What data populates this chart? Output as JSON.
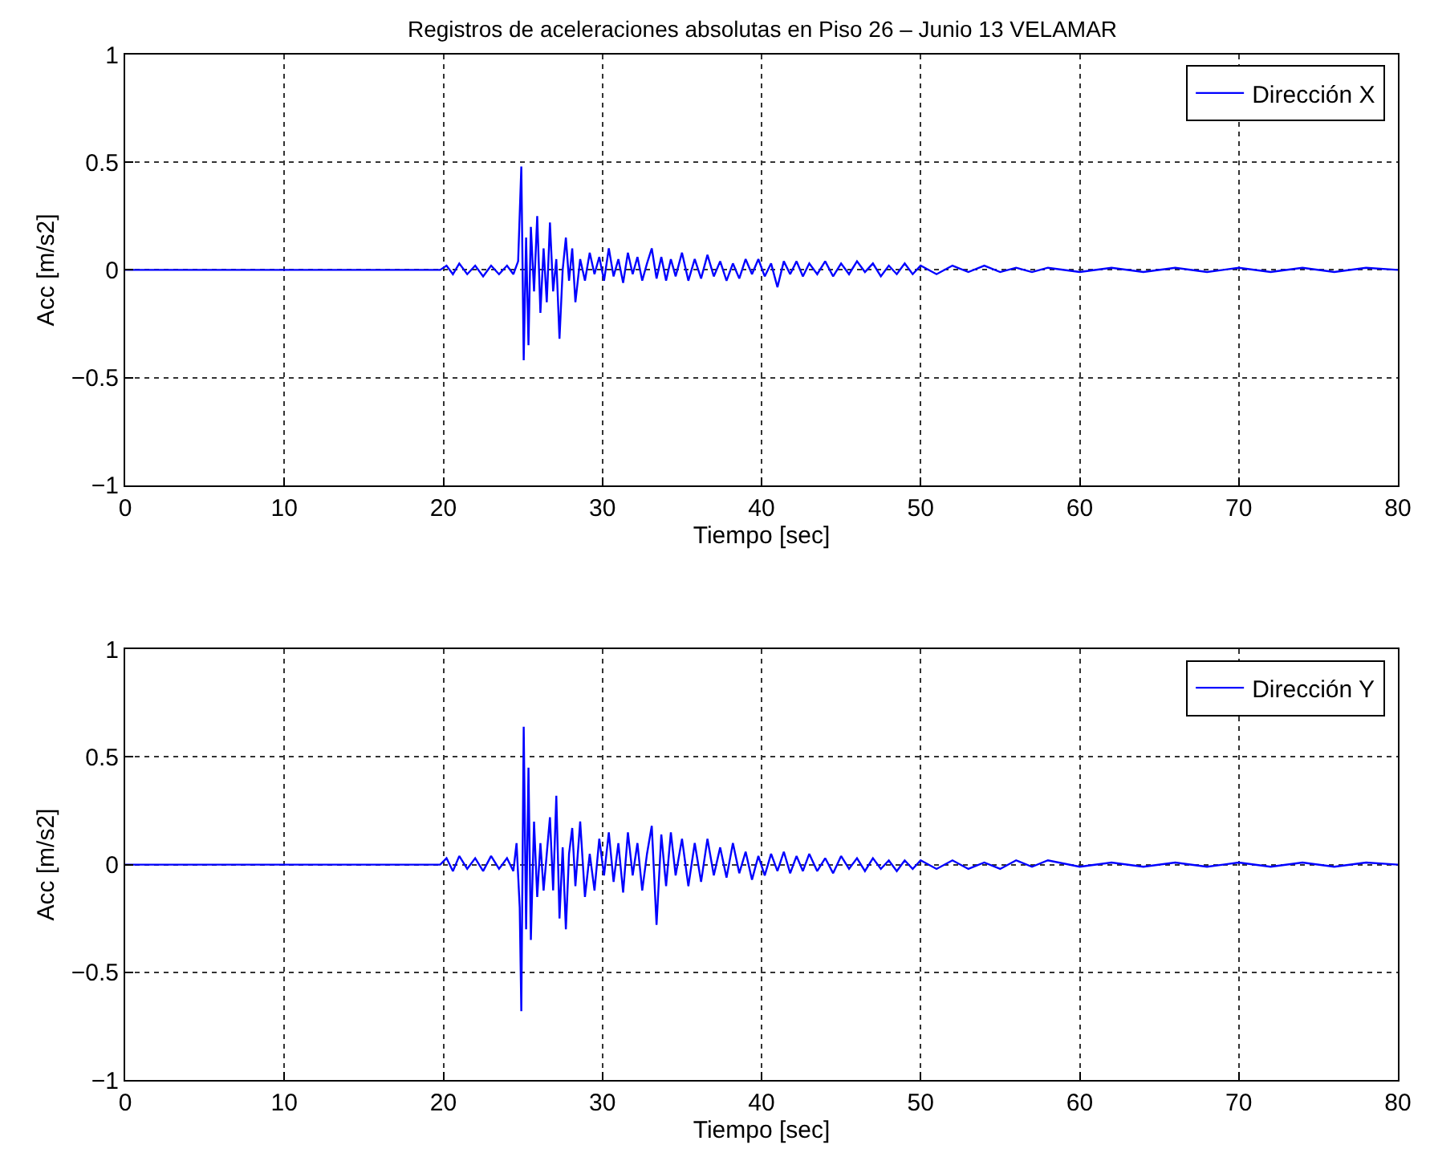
{
  "chart_data": [
    {
      "type": "line",
      "title": "Registros de aceleraciones absolutas en Piso 26 – Junio 13 VELAMAR",
      "xlabel": "Tiempo [sec]",
      "ylabel": "Acc [m/s2]",
      "x": [
        0,
        5,
        10,
        15,
        19.8,
        20.2,
        20.6,
        21,
        21.5,
        22,
        22.5,
        23,
        23.5,
        24,
        24.4,
        24.7,
        24.9,
        25.05,
        25.2,
        25.35,
        25.5,
        25.7,
        25.9,
        26.1,
        26.3,
        26.5,
        26.7,
        26.9,
        27.1,
        27.3,
        27.5,
        27.7,
        27.9,
        28.1,
        28.3,
        28.6,
        28.9,
        29.2,
        29.5,
        29.8,
        30.1,
        30.4,
        30.7,
        31,
        31.3,
        31.6,
        31.9,
        32.2,
        32.5,
        32.8,
        33.1,
        33.4,
        33.7,
        34,
        34.3,
        34.6,
        35,
        35.4,
        35.8,
        36.2,
        36.6,
        37,
        37.4,
        37.8,
        38.2,
        38.6,
        39,
        39.4,
        39.8,
        40.2,
        40.6,
        41,
        41.4,
        41.8,
        42.2,
        42.6,
        43,
        43.5,
        44,
        44.5,
        45,
        45.5,
        46,
        46.5,
        47,
        47.5,
        48,
        48.5,
        49,
        49.5,
        50,
        51,
        52,
        53,
        54,
        55,
        56,
        57,
        58,
        60,
        62,
        64,
        66,
        68,
        70,
        72,
        74,
        76,
        78,
        80
      ],
      "series": [
        {
          "name": "Dirección X",
          "color": "#0000ff",
          "values": [
            0,
            0,
            0,
            0,
            0,
            0.02,
            -0.02,
            0.03,
            -0.02,
            0.02,
            -0.03,
            0.02,
            -0.02,
            0.02,
            -0.02,
            0.04,
            0.48,
            -0.42,
            0.15,
            -0.35,
            0.2,
            -0.1,
            0.25,
            -0.2,
            0.1,
            -0.15,
            0.22,
            -0.1,
            0.05,
            -0.32,
            0,
            0.15,
            -0.05,
            0.1,
            -0.15,
            0.05,
            -0.05,
            0.08,
            -0.02,
            0.06,
            -0.05,
            0.1,
            -0.03,
            0.05,
            -0.06,
            0.08,
            -0.02,
            0.06,
            -0.05,
            0.03,
            0.1,
            -0.04,
            0.06,
            -0.05,
            0.05,
            -0.03,
            0.08,
            -0.05,
            0.05,
            -0.04,
            0.07,
            -0.03,
            0.04,
            -0.05,
            0.03,
            -0.04,
            0.05,
            -0.02,
            0.05,
            -0.03,
            0.03,
            -0.08,
            0.04,
            -0.02,
            0.04,
            -0.03,
            0.03,
            -0.02,
            0.04,
            -0.03,
            0.03,
            -0.02,
            0.04,
            -0.01,
            0.03,
            -0.03,
            0.02,
            -0.02,
            0.03,
            -0.02,
            0.02,
            -0.02,
            0.02,
            -0.01,
            0.02,
            -0.01,
            0.01,
            -0.01,
            0.01,
            -0.01,
            0.01,
            -0.01,
            0.01,
            -0.01,
            0.01,
            -0.01,
            0.01,
            -0.01,
            0.01,
            0
          ]
        }
      ],
      "xlim": [
        0,
        80
      ],
      "xticks": [
        0,
        10,
        20,
        30,
        40,
        50,
        60,
        70,
        80
      ],
      "ylim": [
        -1,
        1
      ],
      "yticks": [
        -1,
        -0.5,
        0,
        0.5,
        1
      ],
      "grid": true,
      "legend": "top right",
      "line_style": "solid",
      "marker": "none"
    },
    {
      "type": "line",
      "xlabel": "Tiempo [sec]",
      "ylabel": "Acc [m/s2]",
      "x": [
        0,
        5,
        10,
        15,
        19.8,
        20.2,
        20.6,
        21,
        21.5,
        22,
        22.5,
        23,
        23.5,
        24,
        24.4,
        24.6,
        24.8,
        24.9,
        25.05,
        25.2,
        25.35,
        25.5,
        25.7,
        25.9,
        26.1,
        26.3,
        26.5,
        26.7,
        26.9,
        27.1,
        27.3,
        27.5,
        27.7,
        27.9,
        28.1,
        28.3,
        28.6,
        28.9,
        29.2,
        29.5,
        29.8,
        30.1,
        30.4,
        30.7,
        31,
        31.3,
        31.6,
        31.9,
        32.2,
        32.5,
        32.8,
        33.1,
        33.4,
        33.7,
        34,
        34.3,
        34.6,
        35,
        35.4,
        35.8,
        36.2,
        36.6,
        37,
        37.4,
        37.8,
        38.2,
        38.6,
        39,
        39.4,
        39.8,
        40.2,
        40.6,
        41,
        41.4,
        41.8,
        42.2,
        42.6,
        43,
        43.5,
        44,
        44.5,
        45,
        45.5,
        46,
        46.5,
        47,
        47.5,
        48,
        48.5,
        49,
        49.5,
        50,
        51,
        52,
        53,
        54,
        55,
        56,
        57,
        58,
        60,
        62,
        64,
        66,
        68,
        70,
        72,
        74,
        76,
        78,
        80
      ],
      "series": [
        {
          "name": "Dirección Y",
          "color": "#0000ff",
          "values": [
            0,
            0,
            0,
            0,
            0,
            0.03,
            -0.03,
            0.04,
            -0.02,
            0.03,
            -0.03,
            0.04,
            -0.02,
            0.03,
            -0.03,
            0.1,
            -0.2,
            -0.68,
            0.64,
            -0.3,
            0.45,
            -0.35,
            0.2,
            -0.15,
            0.1,
            -0.12,
            0.05,
            0.22,
            -0.12,
            0.32,
            -0.25,
            0.08,
            -0.3,
            0.05,
            0.17,
            -0.1,
            0.2,
            -0.15,
            0.05,
            -0.12,
            0.12,
            -0.05,
            0.15,
            -0.08,
            0.1,
            -0.13,
            0.15,
            -0.05,
            0.1,
            -0.12,
            0.05,
            0.18,
            -0.28,
            0.14,
            -0.1,
            0.15,
            -0.05,
            0.12,
            -0.1,
            0.1,
            -0.08,
            0.12,
            -0.05,
            0.08,
            -0.06,
            0.1,
            -0.04,
            0.06,
            -0.07,
            0.04,
            -0.05,
            0.05,
            -0.03,
            0.06,
            -0.04,
            0.04,
            -0.03,
            0.05,
            -0.03,
            0.03,
            -0.04,
            0.04,
            -0.02,
            0.03,
            -0.03,
            0.03,
            -0.02,
            0.02,
            -0.03,
            0.02,
            -0.02,
            0.02,
            -0.02,
            0.02,
            -0.02,
            0.01,
            -0.02,
            0.02,
            -0.01,
            0.02,
            -0.01,
            0.01,
            -0.01,
            0.01,
            -0.01,
            0.01,
            -0.01,
            0.01,
            -0.01,
            0.01,
            0
          ]
        }
      ],
      "xlim": [
        0,
        80
      ],
      "xticks": [
        0,
        10,
        20,
        30,
        40,
        50,
        60,
        70,
        80
      ],
      "ylim": [
        -1,
        1
      ],
      "yticks": [
        -1,
        -0.5,
        0,
        0.5,
        1
      ],
      "grid": true,
      "legend": "top right",
      "line_style": "solid",
      "marker": "none"
    }
  ]
}
